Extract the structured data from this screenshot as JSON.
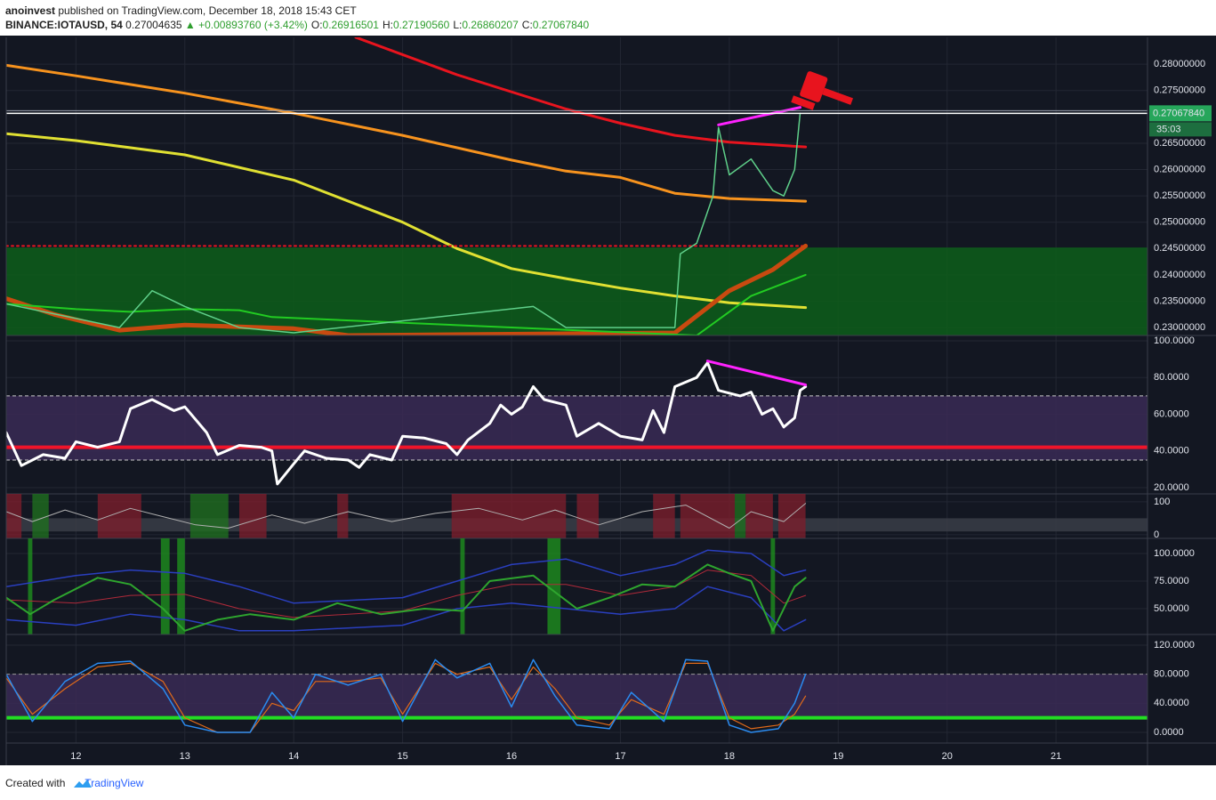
{
  "header": {
    "author": "anoinvest",
    "published": "published on TradingView.com, December 18, 2018 15:43 CET",
    "symbol": "BINANCE:IOTAUSD, 54",
    "price": "0.27004635",
    "change": "▲ +0.00893760 (+3.42%)",
    "ohlc": [
      [
        "O:",
        "0.26916501"
      ],
      [
        "H:",
        "0.27190560"
      ],
      [
        "L:",
        "0.26860207"
      ],
      [
        "C:",
        "0.27067840"
      ]
    ]
  },
  "footer": {
    "created": "Created with",
    "brand": "TradingView"
  },
  "chart_data": [
    {
      "type": "line",
      "ylim": [
        0.2285,
        0.2851
      ],
      "yticks": [
        {
          "value": 0.23,
          "label": "0.23000000"
        },
        {
          "value": 0.235,
          "label": "0.23500000"
        },
        {
          "value": 0.24,
          "label": "0.24000000"
        },
        {
          "value": 0.245,
          "label": "0.24500000"
        },
        {
          "value": 0.25,
          "label": "0.25000000"
        },
        {
          "value": 0.255,
          "label": "0.25500000"
        },
        {
          "value": 0.26,
          "label": "0.26000000"
        },
        {
          "value": 0.265,
          "label": "0.26500000"
        },
        {
          "value": 0.275,
          "label": "0.27500000"
        },
        {
          "value": 0.28,
          "label": "0.28000000"
        }
      ],
      "last": {
        "value": 0.2706784,
        "label": "0.27067840",
        "countdown": "35:03"
      },
      "bands": [
        {
          "from": 0.2285,
          "to": 0.2452,
          "color": "#0d5e1a"
        }
      ],
      "series": [
        {
          "color": "#e0e032",
          "width": 3,
          "x": [
            11.36,
            12,
            13,
            14,
            15,
            15.5,
            16,
            16.5,
            17,
            17.5,
            18,
            18.7
          ],
          "values": [
            0.2668,
            0.2655,
            0.2628,
            0.258,
            0.25,
            0.245,
            0.2412,
            0.2393,
            0.2375,
            0.236,
            0.2347,
            0.2338
          ]
        },
        {
          "color": "#f7931e",
          "width": 3,
          "x": [
            11.36,
            12,
            13,
            14,
            15,
            16,
            16.5,
            17,
            17.5,
            18,
            18.7
          ],
          "values": [
            0.2798,
            0.2778,
            0.2745,
            0.2707,
            0.2665,
            0.2618,
            0.2597,
            0.2585,
            0.2555,
            0.2545,
            0.254
          ]
        },
        {
          "color": "#e8141e",
          "width": 3,
          "x": [
            14.57,
            15.5,
            16.5,
            17,
            17.5,
            18,
            18.7
          ],
          "values": [
            0.2851,
            0.278,
            0.2715,
            0.2688,
            0.2665,
            0.2652,
            0.2643
          ]
        },
        {
          "color": "#e8141e",
          "width": 2,
          "style": "dotted",
          "x": [
            11.36,
            18.7
          ],
          "values": [
            0.2455,
            0.2455
          ]
        },
        {
          "color": "#c84a10",
          "width": 5,
          "x": [
            11.36,
            11.8,
            12.4,
            13,
            14,
            14.5,
            17.5,
            18,
            18.4,
            18.7
          ],
          "values": [
            0.2355,
            0.2325,
            0.2295,
            0.2305,
            0.2298,
            0.2285,
            0.229,
            0.237,
            0.241,
            0.2455
          ]
        },
        {
          "color": "#22cc22",
          "width": 2,
          "x": [
            11.36,
            12,
            12.5,
            13,
            13.5,
            13.8,
            17.7,
            18.2,
            18.7
          ],
          "values": [
            0.2345,
            0.2335,
            0.233,
            0.2335,
            0.2333,
            0.232,
            0.2285,
            0.236,
            0.24
          ]
        },
        {
          "color": "#5fd08a",
          "width": 1.5,
          "x": [
            11.36,
            12.4,
            12.7,
            13.0,
            13.5,
            14.0,
            16.2,
            16.5,
            17.5,
            17.55,
            17.7,
            17.85,
            17.9,
            18.0,
            18.2,
            18.4,
            18.5,
            18.6,
            18.65
          ],
          "values": [
            0.2345,
            0.23,
            0.237,
            0.234,
            0.23,
            0.229,
            0.234,
            0.23,
            0.23,
            0.244,
            0.246,
            0.255,
            0.268,
            0.259,
            0.262,
            0.256,
            0.255,
            0.26,
            0.2707
          ]
        },
        {
          "color": "#ff22ff",
          "width": 3,
          "x": [
            17.9,
            18.65
          ],
          "values": [
            0.2685,
            0.2718
          ]
        }
      ]
    },
    {
      "type": "line",
      "ylim": [
        16.6,
        102.9
      ],
      "yticks": [
        {
          "value": 20,
          "label": "20.0000"
        },
        {
          "value": 40,
          "label": "40.0000"
        },
        {
          "value": 60,
          "label": "60.0000"
        },
        {
          "value": 80,
          "label": "80.0000"
        },
        {
          "value": 100,
          "label": "100.0000"
        }
      ],
      "bands": [
        {
          "from": 35,
          "to": 70,
          "color": "#3a2a55"
        }
      ],
      "hlines": [
        {
          "value": 70,
          "color": "#cccccc",
          "style": "dashed"
        },
        {
          "value": 35,
          "color": "#cccccc",
          "style": "dashed"
        },
        {
          "value": 42,
          "color": "#f0142a",
          "width": 4
        }
      ],
      "series": [
        {
          "color": "#ffffff",
          "width": 3,
          "x": [
            11.36,
            11.5,
            11.7,
            11.9,
            12.0,
            12.2,
            12.4,
            12.5,
            12.7,
            12.9,
            13.0,
            13.2,
            13.3,
            13.5,
            13.7,
            13.8,
            13.85,
            14.0,
            14.1,
            14.3,
            14.5,
            14.6,
            14.7,
            14.9,
            15.0,
            15.2,
            15.4,
            15.5,
            15.6,
            15.8,
            15.9,
            16.0,
            16.1,
            16.2,
            16.3,
            16.5,
            16.6,
            16.8,
            17.0,
            17.2,
            17.3,
            17.4,
            17.5,
            17.7,
            17.8,
            17.9,
            18.1,
            18.2,
            18.3,
            18.4,
            18.5,
            18.6,
            18.65,
            18.7
          ],
          "values": [
            50,
            32,
            38,
            36,
            45,
            42,
            45,
            63,
            68,
            62,
            64,
            50,
            38,
            43,
            42,
            40,
            22,
            33,
            40,
            36,
            35,
            31,
            38,
            35,
            48,
            47,
            44,
            38,
            46,
            55,
            65,
            60,
            64,
            75,
            68,
            65,
            48,
            55,
            48,
            46,
            62,
            50,
            75,
            80,
            88,
            73,
            70,
            72,
            60,
            63,
            53,
            58,
            73,
            75
          ]
        },
        {
          "color": "#ff22ff",
          "width": 3,
          "x": [
            17.8,
            18.7
          ],
          "values": [
            89,
            76
          ]
        }
      ]
    },
    {
      "type": "line",
      "ylim": [
        -11,
        124
      ],
      "yticks": [
        0,
        100
      ],
      "bands": [
        {
          "from": 10,
          "to": 50,
          "color": "#3a3d46"
        }
      ],
      "xbands": [
        {
          "x": [
            11.36,
            11.5
          ],
          "color": "#7a1e2c"
        },
        {
          "x": [
            11.6,
            11.75
          ],
          "color": "#1f6e1f"
        },
        {
          "x": [
            12.2,
            12.6
          ],
          "color": "#7a1e2c"
        },
        {
          "x": [
            13.05,
            13.4
          ],
          "color": "#1f6e1f"
        },
        {
          "x": [
            13.5,
            13.75
          ],
          "color": "#7a1e2c"
        },
        {
          "x": [
            14.4,
            14.5
          ],
          "color": "#7a1e2c"
        },
        {
          "x": [
            15.45,
            16.5
          ],
          "color": "#7a1e2c"
        },
        {
          "x": [
            16.6,
            16.8
          ],
          "color": "#7a1e2c"
        },
        {
          "x": [
            17.3,
            17.5
          ],
          "color": "#7a1e2c"
        },
        {
          "x": [
            17.55,
            18.05
          ],
          "color": "#7a1e2c"
        },
        {
          "x": [
            18.05,
            18.15
          ],
          "color": "#1f6e1f"
        },
        {
          "x": [
            18.15,
            18.4
          ],
          "color": "#7a1e2c"
        },
        {
          "x": [
            18.45,
            18.7
          ],
          "color": "#7a1e2c"
        }
      ],
      "series": [
        {
          "color": "#b0b0b0",
          "width": 1,
          "x": [
            11.36,
            11.6,
            11.9,
            12.2,
            12.5,
            12.8,
            13.1,
            13.4,
            13.8,
            14.1,
            14.5,
            14.9,
            15.3,
            15.7,
            16.1,
            16.4,
            16.8,
            17.2,
            17.6,
            18.0,
            18.2,
            18.5,
            18.7
          ],
          "values": [
            70,
            40,
            75,
            45,
            80,
            55,
            30,
            20,
            60,
            35,
            70,
            40,
            65,
            80,
            45,
            75,
            30,
            70,
            90,
            20,
            70,
            40,
            95
          ]
        }
      ]
    },
    {
      "type": "line",
      "ylim": [
        26.6,
        113.7
      ],
      "yticks": [
        {
          "value": 50,
          "label": "50.0000"
        },
        {
          "value": 75,
          "label": "75.0000"
        },
        {
          "value": 100,
          "label": "100.0000"
        }
      ],
      "xbands": [
        {
          "x": [
            11.56,
            11.6
          ],
          "color": "#1e8f1e"
        },
        {
          "x": [
            12.78,
            12.86
          ],
          "color": "#1e8f1e"
        },
        {
          "x": [
            12.93,
            13.0
          ],
          "color": "#1e8f1e"
        },
        {
          "x": [
            15.53,
            15.57
          ],
          "color": "#1e8f1e"
        },
        {
          "x": [
            16.33,
            16.45
          ],
          "color": "#1e8f1e"
        },
        {
          "x": [
            18.38,
            18.42
          ],
          "color": "#1e8f1e"
        }
      ],
      "series": [
        {
          "color": "#2a3fbf",
          "width": 1.5,
          "x": [
            11.36,
            12,
            12.5,
            13,
            13.5,
            14,
            15,
            15.5,
            16,
            16.5,
            17,
            17.5,
            17.8,
            18.2,
            18.5,
            18.7
          ],
          "values": [
            70,
            80,
            85,
            82,
            70,
            55,
            60,
            75,
            90,
            95,
            80,
            90,
            103,
            100,
            80,
            85
          ]
        },
        {
          "color": "#2a3fbf",
          "width": 1.5,
          "x": [
            11.36,
            12,
            12.5,
            13,
            13.5,
            14,
            15,
            15.5,
            16,
            16.5,
            17,
            17.5,
            17.8,
            18.2,
            18.5,
            18.7
          ],
          "values": [
            40,
            35,
            45,
            40,
            30,
            30,
            35,
            50,
            55,
            50,
            45,
            50,
            70,
            60,
            30,
            40
          ]
        },
        {
          "color": "#b02a3a",
          "width": 1,
          "x": [
            11.36,
            12,
            12.5,
            13,
            13.5,
            14,
            15,
            15.5,
            16,
            16.5,
            17,
            17.5,
            17.8,
            18.2,
            18.5,
            18.7
          ],
          "values": [
            58,
            55,
            62,
            63,
            50,
            42,
            48,
            62,
            72,
            72,
            62,
            70,
            85,
            80,
            55,
            62
          ]
        },
        {
          "color": "#2ea52e",
          "width": 2,
          "x": [
            11.36,
            11.58,
            11.8,
            12.2,
            12.5,
            12.8,
            13.0,
            13.3,
            13.6,
            14.0,
            14.4,
            14.8,
            15.2,
            15.55,
            15.8,
            16.2,
            16.4,
            16.6,
            16.9,
            17.2,
            17.5,
            17.8,
            18.0,
            18.2,
            18.4,
            18.6,
            18.7
          ],
          "values": [
            60,
            45,
            58,
            78,
            72,
            50,
            30,
            40,
            45,
            40,
            55,
            45,
            50,
            48,
            75,
            80,
            65,
            50,
            60,
            72,
            70,
            90,
            82,
            75,
            30,
            70,
            78
          ]
        }
      ]
    },
    {
      "type": "line",
      "ylim": [
        -14.7,
        134.7
      ],
      "yticks": [
        {
          "value": 0,
          "label": "0.0000"
        },
        {
          "value": 40,
          "label": "40.0000"
        },
        {
          "value": 80,
          "label": "80.0000"
        },
        {
          "value": 120,
          "label": "120.0000"
        }
      ],
      "xlim": [
        11.36,
        21.84
      ],
      "xticks": [
        12,
        13,
        14,
        15,
        16,
        17,
        18,
        19,
        20,
        21
      ],
      "bands": [
        {
          "from": 20,
          "to": 80,
          "color": "#3a2a55"
        }
      ],
      "hlines": [
        {
          "value": 80,
          "color": "#999999",
          "style": "dashed"
        },
        {
          "value": 20,
          "color": "#22dd22",
          "width": 4
        }
      ],
      "series": [
        {
          "color": "#e06a1a",
          "width": 1.2,
          "x": [
            11.36,
            11.6,
            11.9,
            12.2,
            12.5,
            12.8,
            13.0,
            13.3,
            13.6,
            13.8,
            14.0,
            14.2,
            14.5,
            14.8,
            15.0,
            15.3,
            15.5,
            15.8,
            16.0,
            16.2,
            16.4,
            16.6,
            16.9,
            17.1,
            17.4,
            17.6,
            17.8,
            18.0,
            18.2,
            18.45,
            18.6,
            18.7
          ],
          "values": [
            75,
            25,
            60,
            90,
            95,
            70,
            20,
            0,
            0,
            40,
            30,
            70,
            70,
            75,
            25,
            95,
            80,
            90,
            45,
            90,
            60,
            20,
            10,
            45,
            25,
            95,
            95,
            20,
            5,
            10,
            25,
            50
          ]
        },
        {
          "color": "#2a8bf0",
          "width": 1.5,
          "x": [
            11.36,
            11.6,
            11.9,
            12.2,
            12.5,
            12.8,
            13.0,
            13.3,
            13.6,
            13.8,
            14.0,
            14.2,
            14.5,
            14.8,
            15.0,
            15.3,
            15.5,
            15.8,
            16.0,
            16.2,
            16.4,
            16.6,
            16.9,
            17.1,
            17.4,
            17.6,
            17.8,
            18.0,
            18.2,
            18.45,
            18.6,
            18.7
          ],
          "values": [
            80,
            15,
            70,
            95,
            98,
            60,
            10,
            0,
            0,
            55,
            20,
            80,
            65,
            80,
            15,
            100,
            75,
            95,
            35,
            100,
            50,
            10,
            5,
            55,
            15,
            100,
            98,
            10,
            0,
            5,
            40,
            80
          ]
        }
      ]
    }
  ]
}
